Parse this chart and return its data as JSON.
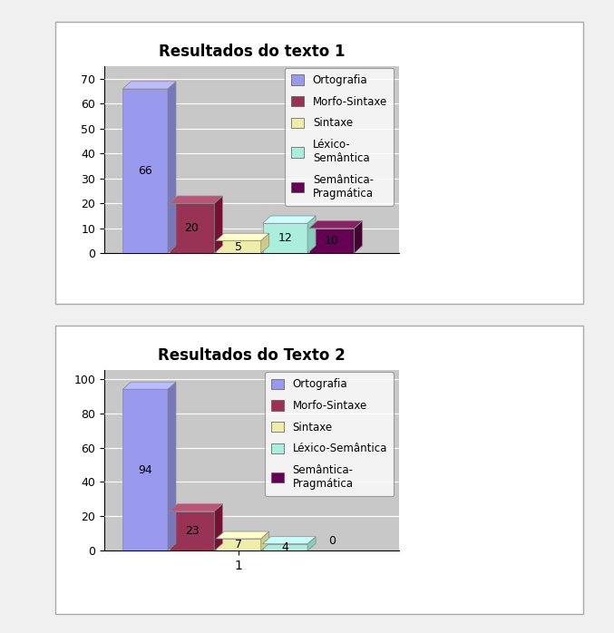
{
  "chart1": {
    "title": "Resultados do texto 1",
    "values": [
      66,
      20,
      5,
      12,
      10
    ],
    "colors": [
      "#9999ee",
      "#993355",
      "#eeeeaa",
      "#aaeedd",
      "#660055"
    ],
    "dark_colors": [
      "#7777bb",
      "#771133",
      "#cccc88",
      "#88ccbb",
      "#440033"
    ],
    "top_colors": [
      "#bbbbff",
      "#bb5577",
      "#ffffcc",
      "#ccffff",
      "#882266"
    ],
    "legend_labels": [
      "Ortografia",
      "Morfo-Sintaxe",
      "Sintaxe",
      "Léxico-\nSemântica",
      "Semântica-\nPragmática"
    ],
    "ylim": [
      0,
      75
    ],
    "yticks": [
      0,
      10,
      20,
      30,
      40,
      50,
      60,
      70
    ]
  },
  "chart2": {
    "title": "Resultados do Texto 2",
    "values": [
      94,
      23,
      7,
      4,
      0
    ],
    "colors": [
      "#9999ee",
      "#993355",
      "#eeeeaa",
      "#aaeedd",
      "#660055"
    ],
    "dark_colors": [
      "#7777bb",
      "#771133",
      "#cccc88",
      "#88ccbb",
      "#440033"
    ],
    "top_colors": [
      "#bbbbff",
      "#bb5577",
      "#ffffcc",
      "#ccffff",
      "#882266"
    ],
    "legend_labels": [
      "Ortografia",
      "Morfo-Sintaxe",
      "Sintaxe",
      "Léxico-Semântica",
      "Semântica-\nPragmática"
    ],
    "ylim": [
      0,
      105
    ],
    "yticks": [
      0,
      20,
      40,
      60,
      80,
      100
    ],
    "xlabel": "1"
  },
  "plot_bg": "#c8c8c8",
  "fig_bg": "#f0f0f0",
  "box_bg": "#ffffff"
}
